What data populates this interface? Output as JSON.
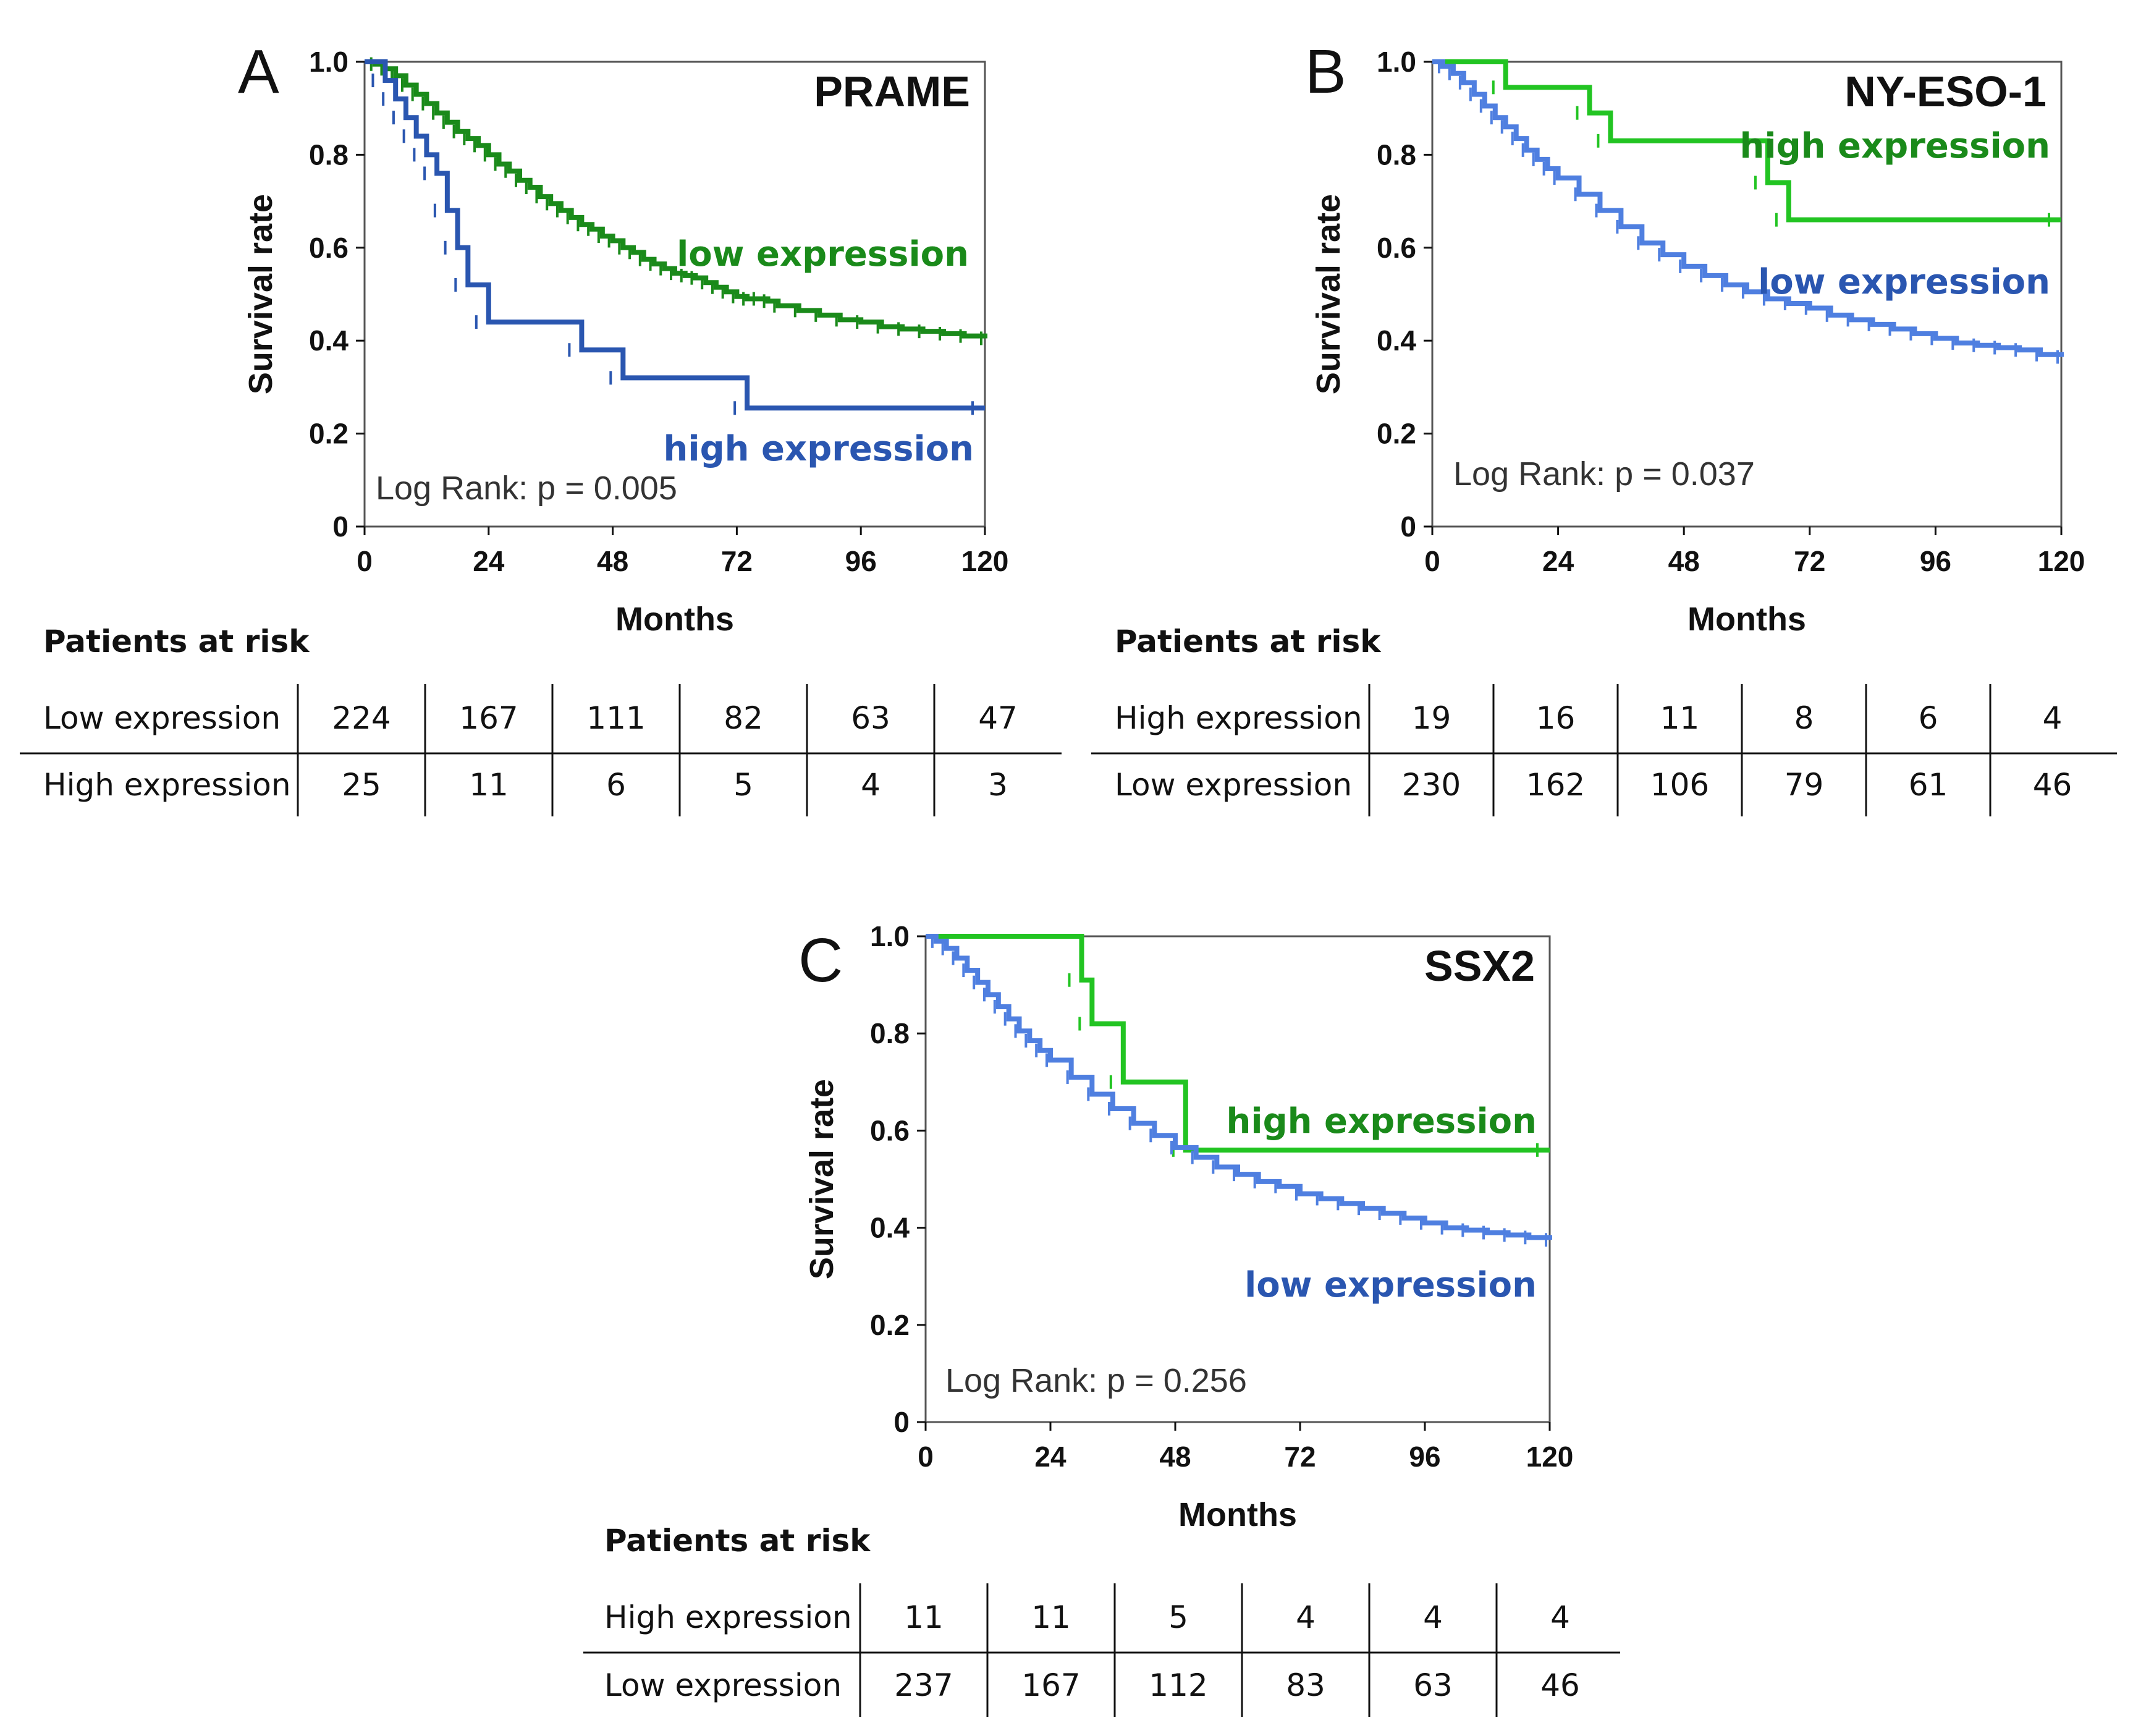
{
  "colors": {
    "green": "#1a8a1a",
    "bright_green": "#22c422",
    "blue": "#2a56b0",
    "light_blue": "#4f7fe0",
    "axis": "#111111"
  },
  "shared": {
    "xlabel": "Months",
    "ylabel": "Survival rate",
    "xticks": [
      "0",
      "24",
      "48",
      "72",
      "96",
      "120"
    ],
    "yticks": [
      "0",
      "0.2",
      "0.4",
      "0.6",
      "0.8",
      "1.0"
    ],
    "table_title": "Patients at risk"
  },
  "chart_data": [
    {
      "type": "line",
      "panel": "A",
      "title": "PRAME",
      "logrank": "Log Rank: p = 0.005",
      "xlabel": "Months",
      "ylabel": "Survival rate",
      "xlim": [
        0,
        120
      ],
      "ylim": [
        0,
        1.0
      ],
      "series": [
        {
          "name": "low expression",
          "color": "#1a8a1a",
          "x": [
            0,
            2,
            4,
            6,
            8,
            10,
            12,
            14,
            16,
            18,
            20,
            22,
            24,
            26,
            28,
            30,
            32,
            34,
            36,
            38,
            40,
            42,
            44,
            46,
            48,
            50,
            52,
            54,
            56,
            58,
            60,
            62,
            64,
            66,
            68,
            70,
            72,
            74,
            76,
            78,
            80,
            84,
            88,
            92,
            96,
            100,
            104,
            108,
            112,
            116,
            120
          ],
          "y": [
            1.0,
            0.995,
            0.985,
            0.97,
            0.95,
            0.93,
            0.91,
            0.89,
            0.87,
            0.85,
            0.835,
            0.82,
            0.8,
            0.78,
            0.765,
            0.745,
            0.73,
            0.71,
            0.695,
            0.68,
            0.665,
            0.65,
            0.64,
            0.625,
            0.615,
            0.6,
            0.59,
            0.575,
            0.565,
            0.555,
            0.545,
            0.54,
            0.535,
            0.525,
            0.515,
            0.505,
            0.495,
            0.49,
            0.49,
            0.485,
            0.475,
            0.465,
            0.455,
            0.445,
            0.44,
            0.43,
            0.425,
            0.42,
            0.415,
            0.41,
            0.405
          ]
        },
        {
          "name": "high expression",
          "color": "#2a56b0",
          "x": [
            0,
            4,
            6,
            8,
            10,
            12,
            14,
            16,
            18,
            20,
            24,
            42,
            50,
            74,
            120
          ],
          "y": [
            1.0,
            0.96,
            0.92,
            0.88,
            0.84,
            0.8,
            0.76,
            0.68,
            0.6,
            0.52,
            0.44,
            0.38,
            0.32,
            0.255,
            0.255
          ]
        }
      ],
      "legend_low": "low expression",
      "legend_high": "high expression",
      "table": {
        "title": "Patients at risk",
        "rows": [
          {
            "label": "Low expression",
            "values": [
              "224",
              "167",
              "111",
              "82",
              "63",
              "47"
            ]
          },
          {
            "label": "High expression",
            "values": [
              "25",
              "11",
              "6",
              "5",
              "4",
              "3"
            ]
          }
        ]
      }
    },
    {
      "type": "line",
      "panel": "B",
      "title": "NY-ESO-1",
      "logrank": "Log Rank: p = 0.037",
      "xlabel": "Months",
      "ylabel": "Survival rate",
      "xlim": [
        0,
        120
      ],
      "ylim": [
        0,
        1.0
      ],
      "series": [
        {
          "name": "high expression",
          "color": "#22c422",
          "x": [
            0,
            14,
            30,
            34,
            64,
            68,
            120
          ],
          "y": [
            1.0,
            0.945,
            0.89,
            0.83,
            0.74,
            0.66,
            0.66
          ]
        },
        {
          "name": "low expression",
          "color": "#4f7fe0",
          "x": [
            0,
            2,
            4,
            6,
            8,
            10,
            12,
            14,
            16,
            18,
            20,
            22,
            24,
            28,
            32,
            36,
            40,
            44,
            48,
            52,
            56,
            60,
            64,
            68,
            72,
            76,
            80,
            84,
            88,
            92,
            96,
            100,
            104,
            108,
            112,
            116,
            120
          ],
          "y": [
            1.0,
            0.99,
            0.975,
            0.955,
            0.93,
            0.905,
            0.88,
            0.86,
            0.835,
            0.81,
            0.79,
            0.77,
            0.75,
            0.715,
            0.68,
            0.645,
            0.61,
            0.585,
            0.56,
            0.54,
            0.52,
            0.505,
            0.49,
            0.48,
            0.47,
            0.455,
            0.445,
            0.435,
            0.425,
            0.415,
            0.405,
            0.395,
            0.39,
            0.385,
            0.38,
            0.37,
            0.365
          ]
        }
      ],
      "legend_low": "low expression",
      "legend_high": "high expression",
      "table": {
        "title": "Patients at risk",
        "rows": [
          {
            "label": "High expression",
            "values": [
              "19",
              "16",
              "11",
              "8",
              "6",
              "4"
            ]
          },
          {
            "label": "Low expression",
            "values": [
              "230",
              "162",
              "106",
              "79",
              "61",
              "46"
            ]
          }
        ]
      }
    },
    {
      "type": "line",
      "panel": "C",
      "title": "SSX2",
      "logrank": "Log Rank: p = 0.256",
      "xlabel": "Months",
      "ylabel": "Survival rate",
      "xlim": [
        0,
        120
      ],
      "ylim": [
        0,
        1.0
      ],
      "series": [
        {
          "name": "high expression",
          "color": "#22c422",
          "x": [
            0,
            30,
            32,
            38,
            50,
            120
          ],
          "y": [
            1.0,
            0.91,
            0.82,
            0.7,
            0.56,
            0.56
          ]
        },
        {
          "name": "low expression",
          "color": "#4f7fe0",
          "x": [
            0,
            2,
            4,
            6,
            8,
            10,
            12,
            14,
            16,
            18,
            20,
            22,
            24,
            28,
            32,
            36,
            40,
            44,
            48,
            52,
            56,
            60,
            64,
            68,
            72,
            76,
            80,
            84,
            88,
            92,
            96,
            100,
            104,
            108,
            112,
            116,
            120
          ],
          "y": [
            1.0,
            0.99,
            0.975,
            0.955,
            0.93,
            0.905,
            0.88,
            0.855,
            0.83,
            0.805,
            0.785,
            0.765,
            0.745,
            0.71,
            0.675,
            0.645,
            0.615,
            0.59,
            0.565,
            0.545,
            0.525,
            0.51,
            0.495,
            0.485,
            0.47,
            0.46,
            0.45,
            0.44,
            0.43,
            0.42,
            0.41,
            0.4,
            0.395,
            0.39,
            0.385,
            0.38,
            0.375
          ]
        }
      ],
      "legend_low": "low expression",
      "legend_high": "high expression",
      "table": {
        "title": "Patients at risk",
        "rows": [
          {
            "label": "High expression",
            "values": [
              "11",
              "11",
              "5",
              "4",
              "4",
              "4"
            ]
          },
          {
            "label": "Low expression",
            "values": [
              "237",
              "167",
              "112",
              "83",
              "63",
              "46"
            ]
          }
        ]
      }
    }
  ]
}
